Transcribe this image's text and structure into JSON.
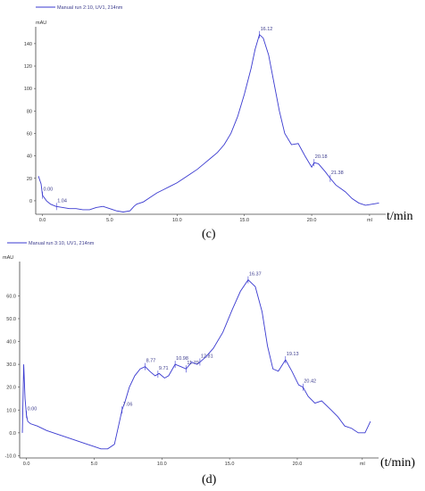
{
  "figures": [
    {
      "legend": "Manual run 2:10, UV1, 214nm",
      "y_unit": "mAU",
      "x_unit_end": "ml",
      "caption": "(c)",
      "xlabel": "t/min"
    },
    {
      "legend": "Manual run 3:10, UV1, 214nm",
      "y_unit": "mAU",
      "x_unit_end": "ml",
      "caption": "(d)",
      "xlabel": "(t/min)"
    }
  ],
  "chart_data": [
    {
      "type": "line",
      "title": "",
      "xlabel": "t/min",
      "ylabel": "mAU",
      "xlim": [
        -0.5,
        25.5
      ],
      "ylim": [
        -12,
        155
      ],
      "x_ticks": [
        "0.0",
        "5.0",
        "10.0",
        "15.0",
        "20.0",
        "ml"
      ],
      "y_ticks": [
        "0",
        "20",
        "40",
        "60",
        "80",
        "100",
        "120",
        "140"
      ],
      "series": [
        {
          "name": "Manual run 2:10, UV1, 214nm",
          "color": "#3a3ad0",
          "x": [
            -0.3,
            -0.1,
            0.0,
            0.3,
            0.6,
            1.0,
            1.5,
            2.0,
            2.5,
            3.0,
            3.5,
            4.0,
            4.5,
            5.0,
            5.5,
            6.0,
            6.5,
            6.8,
            7.0,
            7.5,
            8.0,
            8.5,
            9.0,
            9.5,
            10.0,
            10.5,
            11.0,
            11.5,
            12.0,
            12.5,
            13.0,
            13.5,
            14.0,
            14.5,
            15.0,
            15.5,
            15.8,
            16.12,
            16.4,
            16.8,
            17.2,
            17.6,
            18.0,
            18.5,
            19.0,
            19.5,
            20.0,
            20.18,
            20.5,
            21.0,
            21.38,
            21.8,
            22.5,
            23.0,
            23.5,
            24.0,
            24.5,
            25.0
          ],
          "y": [
            22,
            15,
            5,
            0,
            -3,
            -5,
            -6,
            -7,
            -7,
            -8,
            -8,
            -6,
            -5,
            -7,
            -9,
            -10,
            -9,
            -5,
            -3,
            -1,
            3,
            7,
            10,
            13,
            16,
            20,
            24,
            28,
            33,
            38,
            43,
            50,
            60,
            75,
            95,
            118,
            135,
            148,
            145,
            130,
            105,
            80,
            60,
            50,
            51,
            40,
            30,
            34,
            33,
            26,
            20,
            14,
            8,
            2,
            -2,
            -4,
            -3,
            -2
          ]
        }
      ],
      "peak_labels": [
        "0.00",
        "1.04",
        "16.12",
        "20.18",
        "21.38"
      ]
    },
    {
      "type": "line",
      "title": "",
      "xlabel": "(t/min)",
      "ylabel": "mAU",
      "xlim": [
        -0.5,
        26
      ],
      "ylim": [
        -11,
        75
      ],
      "x_ticks": [
        "0.0",
        "5.0",
        "10.0",
        "15.0",
        "20.0",
        "ml"
      ],
      "y_ticks": [
        "-10.0",
        "0.0",
        "10.0",
        "20.0",
        "30.0",
        "40.0",
        "50.0",
        "60.0"
      ],
      "series": [
        {
          "name": "Manual run 3:10, UV1, 214nm",
          "color": "#3a3ad0",
          "x": [
            -0.3,
            -0.2,
            -0.1,
            0.0,
            0.1,
            0.3,
            0.8,
            1.5,
            2.5,
            3.5,
            4.5,
            5.0,
            5.5,
            6.0,
            6.5,
            6.8,
            7.06,
            7.3,
            7.6,
            8.0,
            8.4,
            8.77,
            9.1,
            9.5,
            9.8,
            10.2,
            10.5,
            10.98,
            11.4,
            11.79,
            12.2,
            12.6,
            12.81,
            13.2,
            13.8,
            14.5,
            15.2,
            15.8,
            16.37,
            16.9,
            17.4,
            17.8,
            18.2,
            18.6,
            19.13,
            19.6,
            20.1,
            20.42,
            20.8,
            21.3,
            21.8,
            22.5,
            23.0,
            23.5,
            24.0,
            24.5,
            25.0,
            25.4
          ],
          "y": [
            0,
            30,
            15,
            8,
            5,
            4,
            3,
            1,
            -1,
            -3,
            -5,
            -6,
            -7,
            -7,
            -5,
            3,
            10,
            14,
            20,
            25,
            28,
            29,
            27,
            25,
            26,
            24,
            25,
            30,
            29,
            28,
            31,
            30,
            31,
            33,
            37,
            44,
            54,
            62,
            67,
            64,
            53,
            38,
            28,
            27,
            32,
            27,
            21,
            20,
            16,
            13,
            14,
            10,
            7,
            3,
            2,
            0,
            0,
            5
          ]
        }
      ],
      "peak_labels": [
        "0.00",
        "7.06",
        "8.77",
        "9.71",
        "10.98",
        "11.79",
        "12.81",
        "16.37",
        "19.13",
        "20.42"
      ]
    }
  ]
}
